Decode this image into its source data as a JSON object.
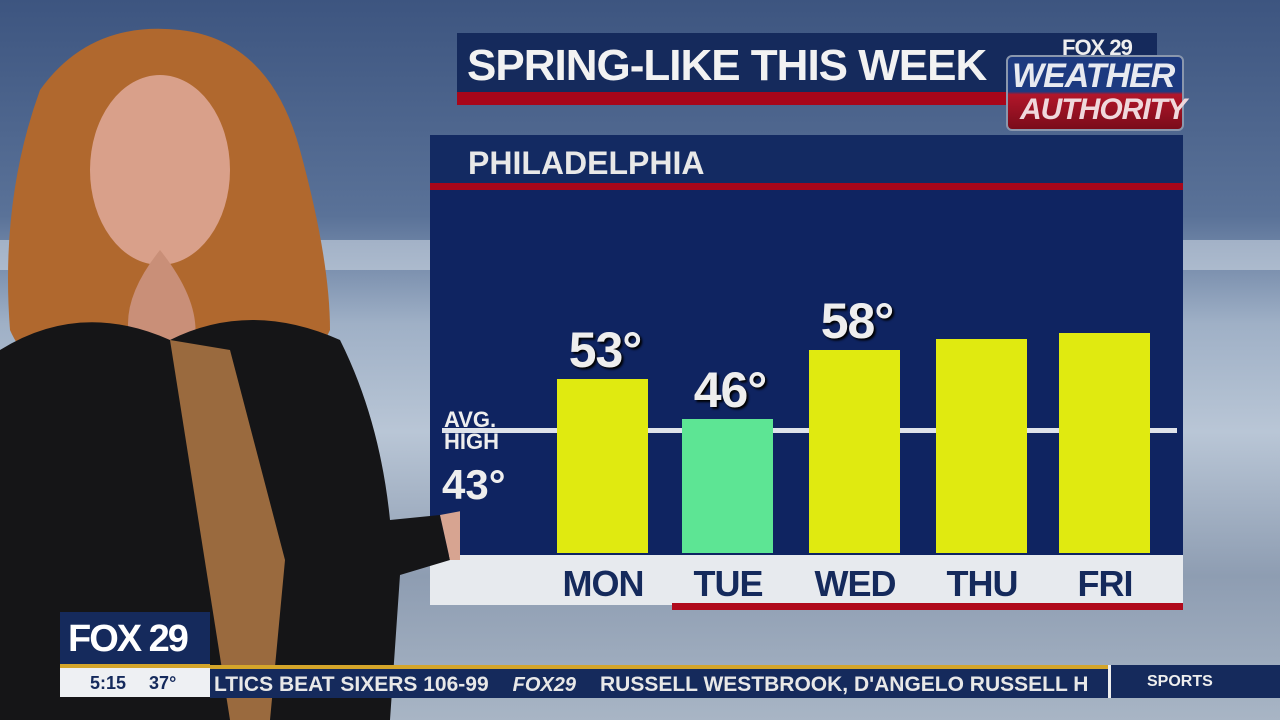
{
  "headline": "SPRING-LIKE THIS WEEK",
  "logo": {
    "top": "FOX 29",
    "line1": "WEATHER",
    "line2": "AUTHORITY"
  },
  "location": "PHILADELPHIA",
  "average": {
    "label_line1": "AVG.",
    "label_line2": "HIGH",
    "value_label": "43°"
  },
  "chart_data": {
    "type": "bar",
    "categories": [
      "MON",
      "TUE",
      "WED",
      "THU",
      "FRI"
    ],
    "values": [
      53,
      46,
      58,
      60,
      61
    ],
    "data_labels": [
      "53°",
      "46°",
      "58°",
      "",
      ""
    ],
    "bar_colors": [
      "#e0ea10",
      "#5de594",
      "#e0ea10",
      "#e0ea10",
      "#e0ea10"
    ],
    "reference_line": {
      "label": "AVG. HIGH",
      "value": 43
    },
    "units": "°F",
    "grid": false
  },
  "station": {
    "name": "FOX 29",
    "time": "5:15",
    "temperature": "37°"
  },
  "ticker": {
    "text1": "LTICS BEAT SIXERS 106-99",
    "logo": "FOX29",
    "text2": "RUSSELL WESTBROOK, D'ANGELO RUSSELL H",
    "section": "SPORTS"
  },
  "colors": {
    "navy": "#0f2461",
    "red": "#a8061a",
    "gold": "#d4a52a"
  }
}
